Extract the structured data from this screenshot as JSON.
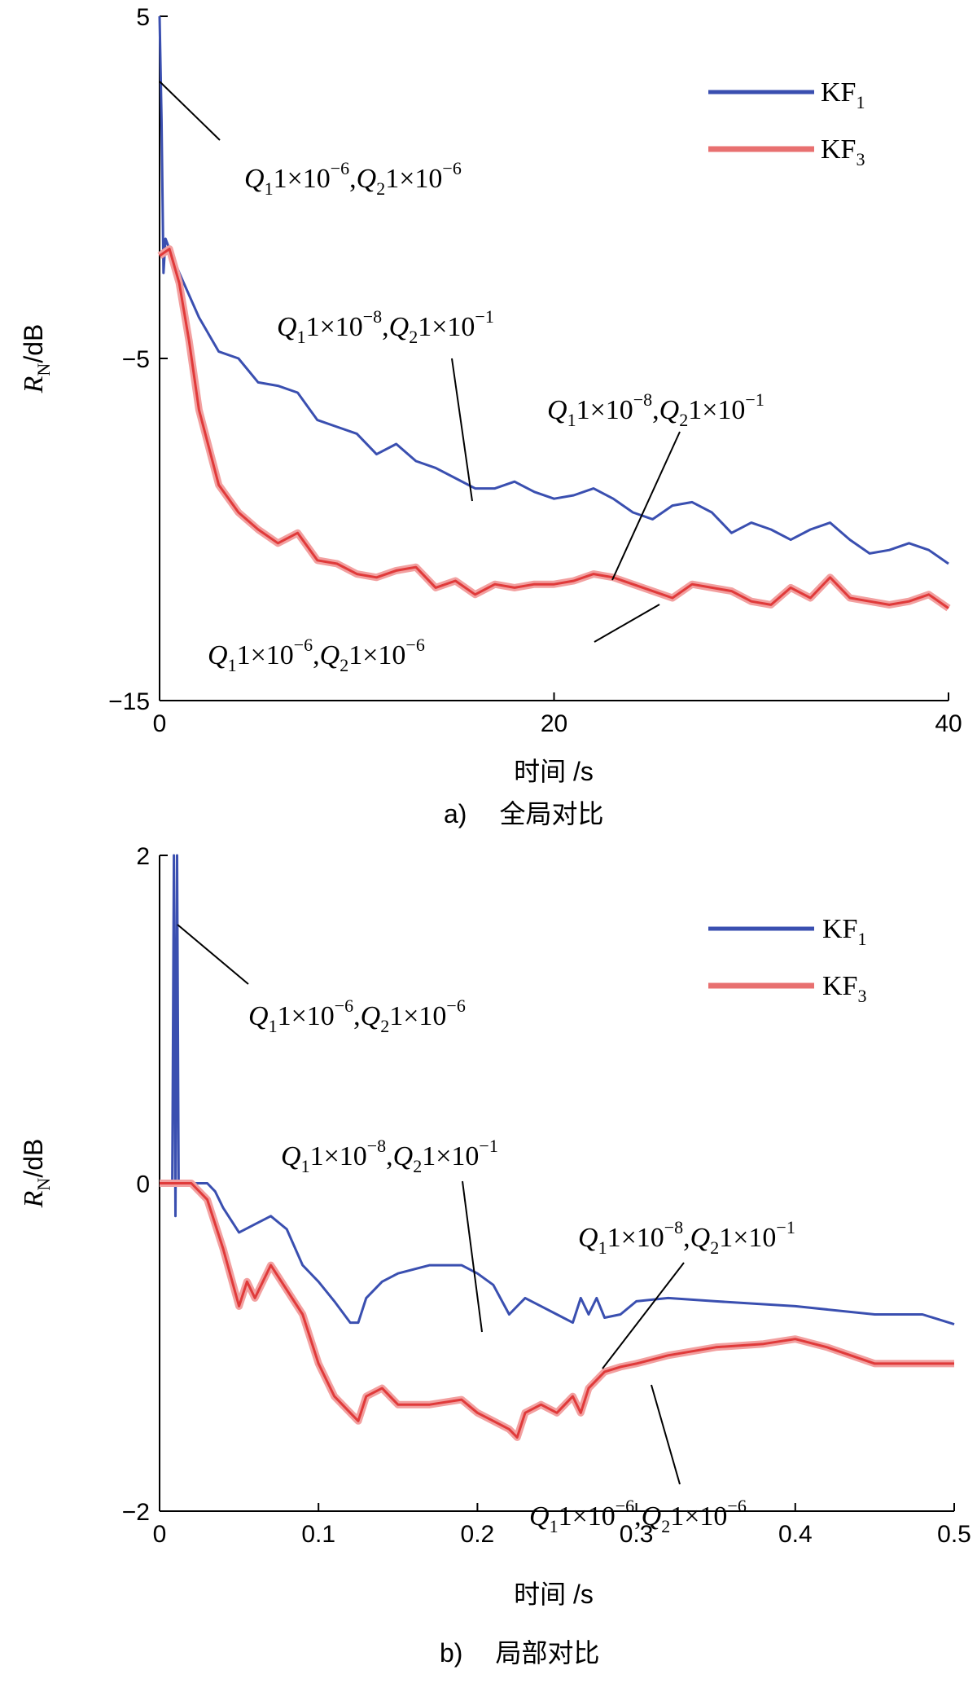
{
  "chart_data": [
    {
      "type": "line",
      "caption_label": "a)",
      "caption_text": "全局对比",
      "xlabel": "时间 /s",
      "ylabel_main": "R",
      "ylabel_sub": "N",
      "ylabel_unit": "/dB",
      "xlim": [
        0,
        40
      ],
      "ylim": [
        -15,
        5
      ],
      "xticks": [
        0,
        20,
        40
      ],
      "yticks": [
        5,
        -5,
        -15
      ],
      "xtick_labels": [
        "0",
        "20",
        "40"
      ],
      "ytick_labels": [
        "5",
        "−5",
        "−15"
      ],
      "grid": false,
      "legend_position": "top-right",
      "series": [
        {
          "name": "KF1",
          "legend_main": "KF",
          "legend_sub": "1",
          "color": "#3a4fb0",
          "x": [
            0,
            0.1,
            0.2,
            0.3,
            0.5,
            1,
            2,
            3,
            4,
            5,
            6,
            7,
            8,
            9,
            10,
            11,
            12,
            13,
            14,
            15,
            16,
            17,
            18,
            19,
            20,
            21,
            22,
            23,
            24,
            25,
            26,
            27,
            28,
            29,
            30,
            31,
            32,
            33,
            34,
            35,
            36,
            37,
            38,
            39,
            40
          ],
          "y": [
            5,
            2,
            -2.5,
            -1.5,
            -1.8,
            -2.5,
            -3.8,
            -4.8,
            -5.0,
            -5.7,
            -5.8,
            -6.0,
            -6.8,
            -7.0,
            -7.2,
            -7.8,
            -7.5,
            -8.0,
            -8.2,
            -8.5,
            -8.8,
            -8.8,
            -8.6,
            -8.9,
            -9.1,
            -9.0,
            -8.8,
            -9.1,
            -9.5,
            -9.7,
            -9.3,
            -9.2,
            -9.5,
            -10.1,
            -9.8,
            -10.0,
            -10.3,
            -10.0,
            -9.8,
            -10.3,
            -10.7,
            -10.6,
            -10.4,
            -10.6,
            -11.0
          ]
        },
        {
          "name": "KF3",
          "legend_main": "KF",
          "legend_sub": "3",
          "color": "#e03a3a",
          "x": [
            0,
            0.5,
            1,
            1.5,
            2,
            3,
            4,
            5,
            6,
            7,
            8,
            9,
            10,
            11,
            12,
            13,
            14,
            15,
            16,
            17,
            18,
            19,
            20,
            21,
            22,
            23,
            24,
            25,
            26,
            27,
            28,
            29,
            30,
            31,
            32,
            33,
            34,
            35,
            36,
            37,
            38,
            39,
            40
          ],
          "y": [
            -2.0,
            -1.8,
            -2.8,
            -4.5,
            -6.5,
            -8.7,
            -9.5,
            -10.0,
            -10.4,
            -10.1,
            -10.9,
            -11.0,
            -11.3,
            -11.4,
            -11.2,
            -11.1,
            -11.7,
            -11.5,
            -11.9,
            -11.6,
            -11.7,
            -11.6,
            -11.6,
            -11.5,
            -11.3,
            -11.4,
            -11.6,
            -11.8,
            -12.0,
            -11.6,
            -11.7,
            -11.8,
            -12.1,
            -12.2,
            -11.7,
            -12.0,
            -11.4,
            -12.0,
            -12.1,
            -12.2,
            -12.1,
            -11.9,
            -12.3
          ]
        }
      ],
      "annotations": [
        {
          "q1": "1×10",
          "q1_exp": "−6",
          "q2": "1×10",
          "q2_exp": "−6"
        },
        {
          "q1": "1×10",
          "q1_exp": "−8",
          "q2": "1×10",
          "q2_exp": "−1"
        },
        {
          "q1": "1×10",
          "q1_exp": "−8",
          "q2": "1×10",
          "q2_exp": "−1"
        },
        {
          "q1": "1×10",
          "q1_exp": "−6",
          "q2": "1×10",
          "q2_exp": "−6"
        }
      ]
    },
    {
      "type": "line",
      "caption_label": "b)",
      "caption_text": "局部对比",
      "xlabel": "时间 /s",
      "ylabel_main": "R",
      "ylabel_sub": "N",
      "ylabel_unit": "/dB",
      "xlim": [
        0,
        0.5
      ],
      "ylim": [
        -2,
        2
      ],
      "xticks": [
        0,
        0.1,
        0.2,
        0.3,
        0.4,
        0.5
      ],
      "yticks": [
        2,
        0,
        -2
      ],
      "xtick_labels": [
        "0",
        "0.1",
        "0.2",
        "0.3",
        "0.4",
        "0.5"
      ],
      "ytick_labels": [
        "2",
        "0",
        "−2"
      ],
      "grid": false,
      "legend_position": "top-right",
      "series": [
        {
          "name": "KF1",
          "legend_main": "KF",
          "legend_sub": "1",
          "color": "#3a4fb0",
          "x": [
            0,
            0.005,
            0.008,
            0.009,
            0.01,
            0.011,
            0.012,
            0.015,
            0.02,
            0.025,
            0.03,
            0.035,
            0.04,
            0.05,
            0.06,
            0.07,
            0.08,
            0.09,
            0.1,
            0.11,
            0.12,
            0.125,
            0.13,
            0.14,
            0.15,
            0.17,
            0.19,
            0.2,
            0.21,
            0.22,
            0.23,
            0.24,
            0.25,
            0.26,
            0.265,
            0.27,
            0.275,
            0.28,
            0.29,
            0.3,
            0.32,
            0.35,
            0.4,
            0.45,
            0.48,
            0.5
          ],
          "y": [
            0,
            0,
            0,
            2,
            -0.2,
            2,
            0,
            0,
            0,
            0,
            0,
            -0.05,
            -0.15,
            -0.3,
            -0.25,
            -0.2,
            -0.28,
            -0.5,
            -0.6,
            -0.72,
            -0.85,
            -0.85,
            -0.7,
            -0.6,
            -0.55,
            -0.5,
            -0.5,
            -0.55,
            -0.62,
            -0.8,
            -0.7,
            -0.75,
            -0.8,
            -0.85,
            -0.7,
            -0.8,
            -0.7,
            -0.82,
            -0.8,
            -0.72,
            -0.7,
            -0.72,
            -0.75,
            -0.8,
            -0.8,
            -0.86
          ]
        },
        {
          "name": "KF3",
          "legend_main": "KF",
          "legend_sub": "3",
          "color": "#e03a3a",
          "x": [
            0,
            0.02,
            0.03,
            0.04,
            0.05,
            0.055,
            0.06,
            0.07,
            0.08,
            0.09,
            0.1,
            0.11,
            0.12,
            0.125,
            0.13,
            0.14,
            0.15,
            0.17,
            0.19,
            0.2,
            0.21,
            0.22,
            0.225,
            0.23,
            0.24,
            0.25,
            0.26,
            0.265,
            0.27,
            0.28,
            0.29,
            0.3,
            0.32,
            0.35,
            0.38,
            0.4,
            0.42,
            0.45,
            0.48,
            0.5
          ],
          "y": [
            0,
            0,
            -0.1,
            -0.4,
            -0.75,
            -0.6,
            -0.7,
            -0.5,
            -0.65,
            -0.8,
            -1.1,
            -1.3,
            -1.4,
            -1.45,
            -1.3,
            -1.25,
            -1.35,
            -1.35,
            -1.32,
            -1.4,
            -1.45,
            -1.5,
            -1.55,
            -1.4,
            -1.35,
            -1.4,
            -1.3,
            -1.4,
            -1.25,
            -1.15,
            -1.12,
            -1.1,
            -1.05,
            -1.0,
            -0.98,
            -0.95,
            -1.0,
            -1.1,
            -1.1,
            -1.1
          ]
        }
      ],
      "annotations": [
        {
          "q1": "1×10",
          "q1_exp": "−6",
          "q2": "1×10",
          "q2_exp": "−6"
        },
        {
          "q1": "1×10",
          "q1_exp": "−8",
          "q2": "1×10",
          "q2_exp": "−1"
        },
        {
          "q1": "1×10",
          "q1_exp": "−8",
          "q2": "1×10",
          "q2_exp": "−1"
        },
        {
          "q1": "1×10",
          "q1_exp": "−6",
          "q2": "1×10",
          "q2_exp": "−6"
        }
      ]
    }
  ]
}
